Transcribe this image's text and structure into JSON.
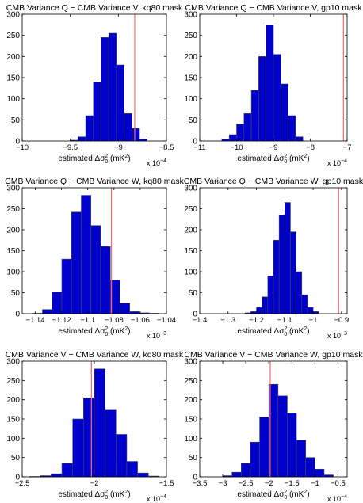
{
  "chart_data": [
    {
      "type": "bar",
      "title": "CMB Variance Q − CMB Variance V, kq80 mask",
      "xlabel": "estimated Δσ",
      "xlabel_sup": "2",
      "xlabel_sub": "0",
      "xlabel_unit": "(mK",
      "xlabel_unit_sup": "2",
      "xlabel_unit_end": ")",
      "exponent_label": "x 10",
      "exponent": "−4",
      "xlim": [
        -10,
        -8.5
      ],
      "ylim": [
        0,
        300
      ],
      "xticks": [
        -10,
        -9.5,
        -9,
        -8.5
      ],
      "xtick_labels": [
        "−10",
        "−9.5",
        "−9",
        "−8.5"
      ],
      "yticks": [
        0,
        50,
        100,
        150,
        200,
        250,
        300
      ],
      "ytick_labels": [
        "0",
        "50",
        "100",
        "150",
        "200",
        "250",
        "300"
      ],
      "bin_edges": [
        -9.5,
        -9.42,
        -9.34,
        -9.26,
        -9.18,
        -9.1,
        -9.02,
        -8.94,
        -8.86,
        -8.78,
        -8.7
      ],
      "counts": [
        2,
        10,
        60,
        140,
        245,
        255,
        180,
        65,
        30,
        5
      ],
      "reference_x": -8.83,
      "bar_color": "#0000CC",
      "reference_color": "#FF6666"
    },
    {
      "type": "bar",
      "title": "CMB Variance Q − CMB Variance V, gp10 mask",
      "xlabel": "estimated Δσ",
      "xlabel_sup": "2",
      "xlabel_sub": "0",
      "xlabel_unit": "(mK",
      "xlabel_unit_sup": "2",
      "xlabel_unit_end": ")",
      "exponent_label": "x 10",
      "exponent": "−4",
      "xlim": [
        -11,
        -7
      ],
      "ylim": [
        0,
        300
      ],
      "xticks": [
        -11,
        -10,
        -9,
        -8,
        -7
      ],
      "xtick_labels": [
        "−11",
        "−10",
        "−9",
        "−8",
        "−7"
      ],
      "yticks": [
        0,
        50,
        100,
        150,
        200,
        250,
        300
      ],
      "ytick_labels": [
        "0",
        "50",
        "100",
        "150",
        "200",
        "250",
        "300"
      ],
      "bin_edges": [
        -10.4,
        -10.2,
        -10.0,
        -9.8,
        -9.6,
        -9.4,
        -9.2,
        -9.0,
        -8.8,
        -8.6,
        -8.4,
        -8.2
      ],
      "counts": [
        5,
        15,
        40,
        65,
        120,
        200,
        275,
        205,
        135,
        60,
        10
      ],
      "reference_x": -7.1,
      "bar_color": "#0000CC",
      "reference_color": "#FF6666"
    },
    {
      "type": "bar",
      "title": "CMB Variance Q − CMB Variance W, kq80 mask",
      "xlabel": "estimated Δσ",
      "xlabel_sup": "2",
      "xlabel_sub": "0",
      "xlabel_unit": "(mK",
      "xlabel_unit_sup": "2",
      "xlabel_unit_end": ")",
      "exponent_label": "x 10",
      "exponent": "−3",
      "xlim": [
        -1.15,
        -1.04
      ],
      "ylim": [
        0,
        300
      ],
      "xticks": [
        -1.14,
        -1.12,
        -1.1,
        -1.08,
        -1.06,
        -1.04
      ],
      "xtick_labels": [
        "−1.14",
        "−1.12",
        "−1.1",
        "−1.08",
        "−1.06",
        "−1.04"
      ],
      "yticks": [
        0,
        50,
        100,
        150,
        200,
        250,
        300
      ],
      "ytick_labels": [
        "0",
        "50",
        "100",
        "150",
        "200",
        "250",
        "300"
      ],
      "bin_edges": [
        -1.142,
        -1.1346,
        -1.1272,
        -1.1198,
        -1.1124,
        -1.105,
        -1.0976,
        -1.0902,
        -1.0828,
        -1.0754,
        -1.068,
        -1.0606,
        -1.0532,
        -1.0458
      ],
      "counts": [
        1,
        10,
        52,
        130,
        242,
        282,
        210,
        160,
        80,
        25,
        5,
        2,
        1
      ],
      "reference_x": -1.082,
      "bar_color": "#0000CC",
      "reference_color": "#FF6666"
    },
    {
      "type": "bar",
      "title": "CMB Variance Q − CMB Variance W, gp10 mask",
      "xlabel": "estimated Δσ",
      "xlabel_sup": "2",
      "xlabel_sub": "0",
      "xlabel_unit": "(mK",
      "xlabel_unit_sup": "2",
      "xlabel_unit_end": ")",
      "exponent_label": "x 10",
      "exponent": "−3",
      "xlim": [
        -1.4,
        -0.88
      ],
      "ylim": [
        0,
        300
      ],
      "xticks": [
        -1.4,
        -1.3,
        -1.2,
        -1.1,
        -1.0,
        -0.9
      ],
      "xtick_labels": [
        "−1.4",
        "−1.3",
        "−1.2",
        "−1.1",
        "−1",
        "−0.9"
      ],
      "yticks": [
        0,
        50,
        100,
        150,
        200,
        250,
        300
      ],
      "ytick_labels": [
        "0",
        "50",
        "100",
        "150",
        "200",
        "250",
        "300"
      ],
      "bin_edges": [
        -1.24,
        -1.22,
        -1.2,
        -1.18,
        -1.16,
        -1.14,
        -1.12,
        -1.1,
        -1.08,
        -1.06,
        -1.04,
        -1.02,
        -1.0,
        -0.98
      ],
      "counts": [
        2,
        5,
        15,
        40,
        90,
        175,
        235,
        265,
        195,
        100,
        45,
        15,
        5
      ],
      "reference_x": -0.91,
      "bar_color": "#0000CC",
      "reference_color": "#FF6666"
    },
    {
      "type": "bar",
      "title": "CMB Variance V − CMB Variance W, kq80 mask",
      "xlabel": "estimated Δσ",
      "xlabel_sup": "2",
      "xlabel_sub": "0",
      "xlabel_unit": "(mK",
      "xlabel_unit_sup": "2",
      "xlabel_unit_end": ")",
      "exponent_label": "x 10",
      "exponent": "−4",
      "xlim": [
        -2.5,
        -1.5
      ],
      "ylim": [
        0,
        300
      ],
      "xticks": [
        -2.5,
        -2,
        -1.5
      ],
      "xtick_labels": [
        "−2.5",
        "−2",
        "−1.5"
      ],
      "yticks": [
        0,
        50,
        100,
        150,
        200,
        250,
        300
      ],
      "ytick_labels": [
        "0",
        "50",
        "100",
        "150",
        "200",
        "250",
        "300"
      ],
      "bin_edges": [
        -2.45,
        -2.375,
        -2.3,
        -2.225,
        -2.15,
        -2.075,
        -2.0,
        -1.925,
        -1.85,
        -1.775,
        -1.7,
        -1.625,
        -1.55
      ],
      "counts": [
        1,
        3,
        8,
        35,
        150,
        205,
        280,
        175,
        110,
        40,
        10,
        2
      ],
      "reference_x": -2.02,
      "bar_color": "#0000CC",
      "reference_color": "#FF6666"
    },
    {
      "type": "bar",
      "title": "CMB Variance V − CMB Variance W, gp10 mask",
      "xlabel": "estimated Δσ",
      "xlabel_sup": "2",
      "xlabel_sub": "0",
      "xlabel_unit": "(mK",
      "xlabel_unit_sup": "2",
      "xlabel_unit_end": ")",
      "exponent_label": "x 10",
      "exponent": "−4",
      "xlim": [
        -3.5,
        -0.3
      ],
      "ylim": [
        0,
        300
      ],
      "xticks": [
        -3.5,
        -3,
        -2.5,
        -2,
        -1.5,
        -1,
        -0.5
      ],
      "xtick_labels": [
        "−3.5",
        "−3",
        "−2.5",
        "−2",
        "−1.5",
        "−1",
        "−0.5"
      ],
      "yticks": [
        0,
        50,
        100,
        150,
        200,
        250,
        300
      ],
      "ytick_labels": [
        "0",
        "50",
        "100",
        "150",
        "200",
        "250",
        "300"
      ],
      "bin_edges": [
        -3.0,
        -2.8,
        -2.6,
        -2.4,
        -2.2,
        -2.0,
        -1.8,
        -1.6,
        -1.4,
        -1.2,
        -1.0,
        -0.8,
        -0.6
      ],
      "counts": [
        3,
        12,
        35,
        90,
        155,
        240,
        210,
        165,
        95,
        50,
        20,
        5
      ],
      "reference_x": -1.97,
      "bar_color": "#0000CC",
      "reference_color": "#FF6666"
    }
  ]
}
